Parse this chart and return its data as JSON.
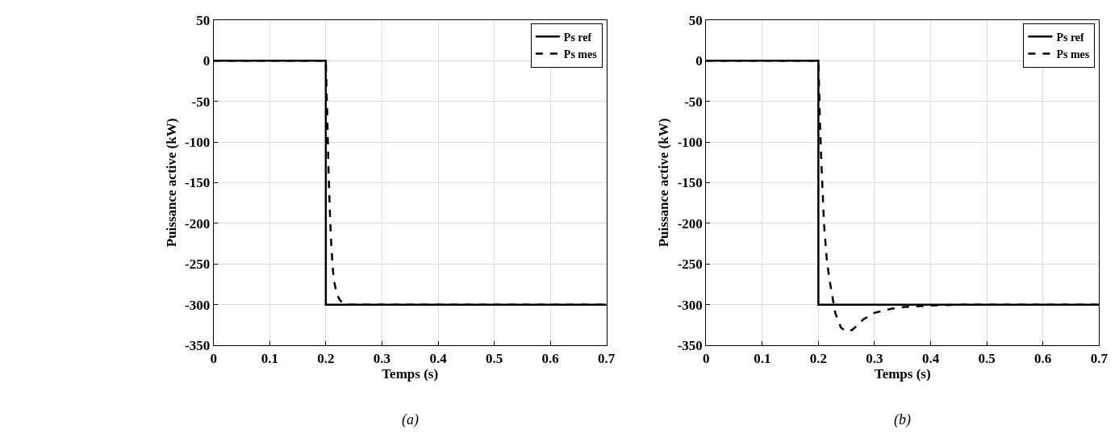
{
  "chart_data": [
    {
      "type": "line",
      "xlabel": "Temps (s)",
      "ylabel": "Puissance active (kW)",
      "xlim": [
        0,
        0.7
      ],
      "ylim": [
        -350,
        50
      ],
      "xticks": [
        0,
        0.1,
        0.2,
        0.3,
        0.4,
        0.5,
        0.6,
        0.7
      ],
      "yticks": [
        -350,
        -300,
        -250,
        -200,
        -150,
        -100,
        -50,
        0,
        50
      ],
      "grid": true,
      "legend": "top right",
      "annotations": [
        "(a)"
      ],
      "series": [
        {
          "name": "Ps ref",
          "color": "#000000",
          "line_style": "solid",
          "x": [
            0,
            0.2,
            0.2,
            0.7
          ],
          "values": [
            0,
            0,
            -300,
            -300
          ]
        },
        {
          "name": "Ps mes",
          "color": "#000000",
          "line_style": "dashed",
          "x": [
            0,
            0.2,
            0.203,
            0.205,
            0.208,
            0.21,
            0.213,
            0.215,
            0.22,
            0.225,
            0.23,
            0.24,
            0.25,
            0.3,
            0.4,
            0.5,
            0.6,
            0.7
          ],
          "values": [
            0,
            0,
            -80,
            -140,
            -200,
            -230,
            -260,
            -272,
            -288,
            -294,
            -298,
            -300,
            -300,
            -300,
            -300,
            -300,
            -300,
            -300
          ]
        }
      ]
    },
    {
      "type": "line",
      "xlabel": "Temps (s)",
      "ylabel": "Puissance active (kW)",
      "xlim": [
        0,
        0.7
      ],
      "ylim": [
        -350,
        50
      ],
      "xticks": [
        0,
        0.1,
        0.2,
        0.3,
        0.4,
        0.5,
        0.6,
        0.7
      ],
      "yticks": [
        -350,
        -300,
        -250,
        -200,
        -150,
        -100,
        -50,
        0,
        50
      ],
      "grid": true,
      "legend": "top right",
      "annotations": [
        "(b)"
      ],
      "series": [
        {
          "name": "Ps ref",
          "color": "#000000",
          "line_style": "solid",
          "x": [
            0,
            0.2,
            0.2,
            0.7
          ],
          "values": [
            0,
            0,
            -300,
            -300
          ]
        },
        {
          "name": "Ps mes",
          "color": "#000000",
          "line_style": "dashed",
          "x": [
            0,
            0.2,
            0.203,
            0.205,
            0.21,
            0.215,
            0.22,
            0.23,
            0.24,
            0.25,
            0.26,
            0.27,
            0.28,
            0.3,
            0.33,
            0.35,
            0.4,
            0.45,
            0.5,
            0.6,
            0.7
          ],
          "values": [
            0,
            0,
            -80,
            -120,
            -200,
            -245,
            -270,
            -310,
            -328,
            -333,
            -331,
            -325,
            -318,
            -310,
            -305,
            -303,
            -301,
            -300,
            -300,
            -300,
            -300
          ]
        }
      ]
    }
  ]
}
